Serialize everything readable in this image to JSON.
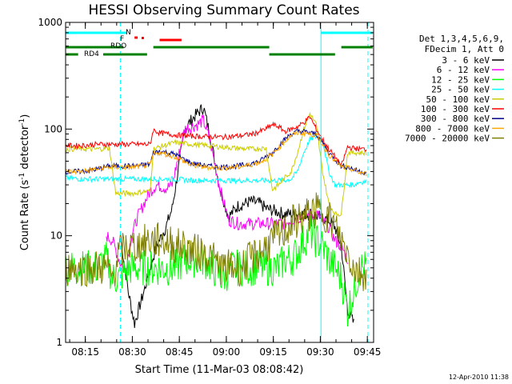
{
  "chart_data": {
    "type": "line",
    "title": "HESSI Observing Summary Count Rates",
    "xlabel": "Start Time (11-Mar-03 08:08:42)",
    "ylabel": "Count Rate (s",
    "ylabel_sup": "-1",
    "ylabel_mid": " detector",
    "ylabel_end": ")",
    "y_scale": "log",
    "ylim": [
      1,
      1000
    ],
    "xlim": [
      "08:08:42",
      "09:47:00"
    ],
    "y_ticks": [
      "1",
      "10",
      "100",
      "1000"
    ],
    "x_ticks": [
      "08:15",
      "08:30",
      "08:45",
      "09:00",
      "09:15",
      "09:30",
      "09:45"
    ],
    "x_tick_minutes": [
      6.3,
      21.3,
      36.3,
      51.3,
      66.3,
      81.3,
      96.3
    ],
    "footer": "12-Apr-2010 11:38",
    "legend_header": [
      "Det 1,3,4,5,6,9,",
      "FDecim 1, Att 0"
    ],
    "series": [
      {
        "name": "3 - 6 keV",
        "color": "#000000",
        "x": [
          0,
          13,
          16,
          17.5,
          20,
          22,
          25,
          27,
          29,
          32,
          34,
          38,
          39,
          41,
          42,
          44,
          46,
          49,
          52,
          55,
          59,
          62,
          64,
          67,
          70,
          72,
          75,
          78,
          81,
          84,
          86,
          88,
          90,
          92,
          93,
          95,
          97
        ],
        "y": [
          null,
          null,
          null,
          10,
          3,
          1.5,
          3,
          5,
          8,
          12,
          18,
          100,
          110,
          130,
          140,
          160,
          90,
          30,
          15,
          19,
          21,
          20,
          18,
          17,
          16,
          16,
          16,
          16,
          15,
          14,
          12,
          8,
          2,
          1.5,
          null,
          null,
          null
        ]
      },
      {
        "name": "6 - 12 keV",
        "color": "#ff00ff",
        "x": [
          13,
          15,
          17,
          19,
          21,
          23,
          25,
          27,
          29,
          32,
          34,
          38,
          40,
          42,
          44,
          46,
          49,
          52,
          55,
          59,
          62,
          64,
          67,
          70,
          72,
          75,
          78,
          80,
          82,
          84,
          86,
          88,
          90
        ],
        "y": [
          10,
          9,
          6,
          4.5,
          10,
          15,
          20,
          26,
          30,
          28,
          30,
          100,
          105,
          110,
          120,
          80,
          30,
          14,
          13,
          13,
          13,
          13,
          13,
          13,
          14,
          15,
          16,
          16,
          14,
          12,
          9,
          8,
          6
        ]
      },
      {
        "name": "12 - 25 keV",
        "color": "#00ff00",
        "x": [
          0,
          5,
          10,
          13,
          15,
          17,
          20,
          23,
          26,
          29,
          32,
          35,
          38,
          41,
          44,
          47,
          50,
          53,
          56,
          59,
          62,
          64,
          66,
          68,
          70,
          72,
          74,
          76,
          78,
          80,
          82,
          84,
          86,
          88,
          90,
          92,
          94,
          96
        ],
        "y": [
          5,
          5,
          5,
          6,
          4,
          4,
          5,
          5,
          5,
          5,
          5,
          5,
          6,
          6,
          6,
          5,
          4,
          5,
          5,
          5,
          5,
          5,
          5,
          5,
          6,
          6,
          7,
          9,
          11,
          9,
          8,
          6,
          5,
          4,
          2,
          3,
          5,
          5
        ]
      },
      {
        "name": "25 - 50 keV",
        "color": "#00ffff",
        "x": [
          0,
          5,
          10,
          14,
          16,
          18,
          20,
          22,
          25,
          27,
          28,
          30,
          35,
          40,
          45,
          50,
          55,
          60,
          62,
          64,
          66,
          68,
          70,
          72,
          74,
          76,
          78,
          80,
          82,
          84,
          86,
          88,
          90,
          92,
          94,
          96
        ],
        "y": [
          35,
          34,
          34,
          34,
          34,
          34,
          34,
          34,
          34,
          34,
          34,
          34,
          34,
          33,
          33,
          33,
          33,
          33,
          33,
          33,
          33,
          33,
          33,
          34,
          40,
          60,
          80,
          85,
          80,
          40,
          30,
          30,
          30,
          30,
          32,
          32
        ]
      },
      {
        "name": "50 - 100 keV",
        "color": "#cccc00",
        "x": [
          0,
          5,
          10,
          14,
          16,
          18,
          20,
          22,
          25,
          27,
          28,
          30,
          35,
          40,
          45,
          50,
          55,
          60,
          62,
          64,
          66,
          68,
          70,
          72,
          74,
          76,
          78,
          80,
          82,
          84,
          86,
          88,
          90,
          92,
          94,
          96
        ],
        "y": [
          65,
          65,
          65,
          66,
          25,
          25,
          25,
          25,
          26,
          26,
          65,
          68,
          75,
          72,
          70,
          68,
          66,
          65,
          66,
          66,
          27,
          30,
          35,
          40,
          60,
          100,
          140,
          110,
          40,
          20,
          16,
          16,
          60,
          60,
          60,
          60
        ]
      },
      {
        "name": "100 - 300 keV",
        "color": "#ff0000",
        "x": [
          0,
          5,
          10,
          14,
          16,
          18,
          20,
          22,
          25,
          27,
          28,
          30,
          35,
          40,
          45,
          50,
          55,
          60,
          62,
          64,
          66,
          68,
          70,
          72,
          74,
          76,
          78,
          80,
          82,
          84,
          86,
          88,
          90,
          92,
          94,
          96
        ],
        "y": [
          70,
          70,
          72,
          72,
          72,
          72,
          72,
          72,
          72,
          72,
          98,
          92,
          88,
          86,
          85,
          84,
          86,
          90,
          95,
          100,
          110,
          105,
          95,
          100,
          105,
          115,
          130,
          100,
          80,
          65,
          55,
          45,
          68,
          66,
          65,
          65
        ]
      },
      {
        "name": "300 - 800 keV",
        "color": "#00008b",
        "x": [
          0,
          5,
          10,
          14,
          16,
          18,
          20,
          22,
          25,
          27,
          28,
          30,
          35,
          40,
          45,
          50,
          55,
          60,
          62,
          64,
          66,
          68,
          70,
          72,
          74,
          76,
          78,
          80,
          82,
          84,
          86,
          88,
          90,
          92,
          94,
          96
        ],
        "y": [
          40,
          40,
          42,
          45,
          45,
          45,
          45,
          45,
          46,
          47,
          60,
          62,
          58,
          48,
          45,
          44,
          45,
          48,
          50,
          55,
          60,
          70,
          80,
          90,
          95,
          95,
          92,
          90,
          75,
          60,
          52,
          45,
          44,
          42,
          40,
          39
        ]
      },
      {
        "name": "800 - 7000 keV",
        "color": "#ffa500",
        "x": [
          0,
          5,
          10,
          14,
          16,
          18,
          20,
          22,
          25,
          27,
          28,
          30,
          35,
          40,
          45,
          50,
          55,
          60,
          62,
          64,
          66,
          68,
          70,
          72,
          74,
          76,
          78,
          80,
          82,
          84,
          86,
          88,
          90,
          92,
          94,
          96
        ],
        "y": [
          40,
          40,
          42,
          44,
          44,
          44,
          44,
          44,
          45,
          46,
          58,
          60,
          55,
          46,
          44,
          43,
          44,
          47,
          49,
          53,
          58,
          67,
          77,
          87,
          92,
          92,
          90,
          88,
          72,
          58,
          50,
          44,
          43,
          41,
          39,
          38
        ]
      },
      {
        "name": "7000 - 20000 keV",
        "color": "#808000",
        "x": [
          0,
          5,
          10,
          13,
          15,
          17,
          20,
          23,
          26,
          29,
          32,
          35,
          38,
          41,
          44,
          47,
          50,
          53,
          56,
          59,
          62,
          64,
          66,
          68,
          70,
          72,
          74,
          76,
          78,
          80,
          82,
          84,
          86,
          88,
          90,
          92,
          94,
          96
        ],
        "y": [
          5,
          5,
          5,
          5,
          4,
          7,
          8,
          8,
          9,
          9,
          9,
          8,
          8,
          7,
          7,
          6,
          5,
          5,
          5,
          6,
          7,
          8,
          9,
          10,
          11,
          13,
          14,
          15,
          16,
          17,
          17,
          15,
          12,
          9,
          7,
          5,
          4.5,
          4.5
        ]
      }
    ],
    "flags": [
      {
        "label": "N",
        "color": "#00ffff",
        "segments": [
          [
            0,
            19.5
          ],
          [
            81.5,
            98
          ]
        ]
      },
      {
        "label": "F",
        "color": "#ff0000",
        "segments": [
          [
            22,
            23
          ]
        ],
        "points": [
          24.5
        ]
      },
      {
        "label": "",
        "color": "#ff0000",
        "segments": [
          [
            30,
            37
          ]
        ]
      },
      {
        "label": "RDO",
        "color": "#008000",
        "segments": [
          [
            0,
            18.5
          ],
          [
            28,
            65
          ],
          [
            88,
            98
          ]
        ]
      },
      {
        "label": "RD4",
        "color": "#008000",
        "segments": [
          [
            0,
            4
          ],
          [
            12,
            26
          ],
          [
            65,
            86
          ]
        ]
      }
    ],
    "vlines": [
      {
        "x": 17.5,
        "color": "#00ffff",
        "style": "dashed"
      },
      {
        "x": 81.5,
        "color": "#00ffff",
        "style": "solid"
      },
      {
        "x": 96.5,
        "color": "#00ffff",
        "style": "dashed"
      }
    ]
  }
}
